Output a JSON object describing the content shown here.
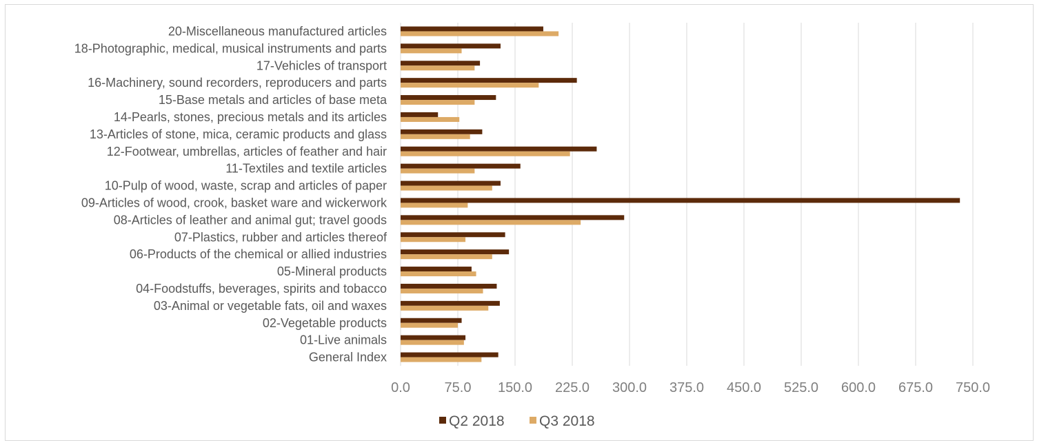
{
  "chart_data": {
    "type": "bar",
    "orientation": "horizontal",
    "categories": [
      "General Index",
      "01-Live animals",
      "02-Vegetable products",
      "03-Animal or vegetable fats, oil and waxes",
      "04-Foodstuffs, beverages, spirits and tobacco",
      "05-Mineral products",
      "06-Products of the chemical or allied industries",
      "07-Plastics, rubber and articles thereof",
      "08-Articles of leather and animal gut; travel goods",
      "09-Articles of wood, crook, basket ware and wickerwork",
      "10-Pulp of wood, waste, scrap and articles of paper",
      "11-Textiles and textile articles",
      "12-Footwear, umbrellas, articles of feather and hair",
      "13-Articles of stone, mica, ceramic products and glass",
      "14-Pearls, stones, precious metals and its articles",
      "15-Base metals and articles of base meta",
      "16-Machinery, sound recorders, reproducers and parts",
      "17-Vehicles of transport",
      "18-Photographic, medical, musical instruments and parts",
      "20-Miscellaneous manufactured articles"
    ],
    "series": [
      {
        "name": "Q2 2018",
        "color": "#5c2a0a",
        "values": [
          128,
          85,
          80,
          130,
          126,
          93,
          142,
          137,
          293,
          733,
          131,
          157,
          257,
          107,
          49,
          125,
          231,
          104,
          131,
          187
        ]
      },
      {
        "name": "Q3 2018",
        "color": "#ddaa66",
        "values": [
          106,
          83,
          75,
          115,
          108,
          99,
          120,
          85,
          236,
          88,
          120,
          97,
          222,
          91,
          77,
          97,
          181,
          97,
          80,
          207
        ]
      }
    ],
    "xlim": [
      0,
      750
    ],
    "xticks": [
      "0.0",
      "75.0",
      "150.0",
      "225.0",
      "300.0",
      "375.0",
      "450.0",
      "525.0",
      "600.0",
      "675.0",
      "750.0"
    ],
    "grid": true,
    "legend": "bottom"
  }
}
